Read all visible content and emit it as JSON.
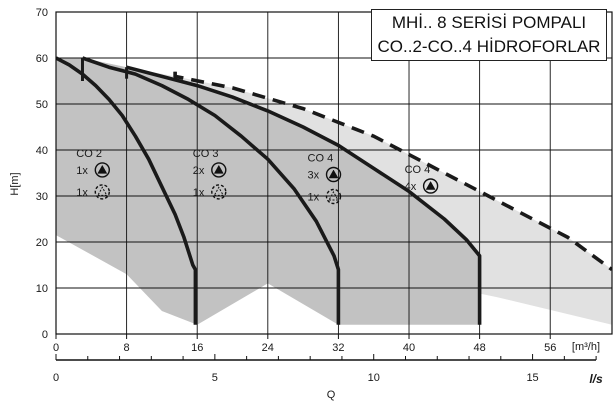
{
  "chart_data": {
    "type": "line",
    "title_lines": [
      "MHİ.. 8 SERİSİ POMPALI",
      "CO..2-CO..4 HİDROFORLAR"
    ],
    "ylabel": "H[m]",
    "xlabel": "Q",
    "x_unit_top": "m³/h",
    "x_unit_bottom": "l/s",
    "ylim": [
      0,
      70
    ],
    "xlim": [
      0,
      63
    ],
    "y_ticks": [
      0,
      10,
      20,
      30,
      40,
      50,
      60,
      70
    ],
    "x_ticks_top": [
      0,
      8,
      16,
      24,
      32,
      40,
      48,
      56
    ],
    "x_ticks_bottom": [
      0,
      5,
      10,
      15
    ],
    "grid": true,
    "series": [
      {
        "name": "CO 2",
        "style": "solid",
        "points": [
          [
            0,
            60
          ],
          [
            1.5,
            58.5
          ],
          [
            3,
            56.5
          ],
          [
            4.5,
            54
          ],
          [
            6,
            51
          ],
          [
            7.5,
            47.5
          ],
          [
            9,
            43
          ],
          [
            10.5,
            38
          ],
          [
            12,
            32
          ],
          [
            13.5,
            26
          ],
          [
            14.5,
            21
          ],
          [
            15.5,
            15
          ],
          [
            15.8,
            14
          ],
          [
            15.8,
            2
          ]
        ]
      },
      {
        "name": "CO 3",
        "style": "solid",
        "points": [
          [
            3,
            60
          ],
          [
            6,
            58
          ],
          [
            9,
            56.5
          ],
          [
            12,
            54
          ],
          [
            15,
            51
          ],
          [
            18,
            47.5
          ],
          [
            21,
            43
          ],
          [
            24,
            38
          ],
          [
            27,
            31.5
          ],
          [
            29.5,
            24.5
          ],
          [
            31.5,
            17
          ],
          [
            32,
            14
          ],
          [
            32,
            2
          ]
        ]
      },
      {
        "name": "CO 4",
        "style": "solid",
        "points": [
          [
            8,
            58
          ],
          [
            12,
            56
          ],
          [
            16,
            54
          ],
          [
            20,
            51.5
          ],
          [
            24,
            48.5
          ],
          [
            28,
            45
          ],
          [
            32,
            41
          ],
          [
            36,
            36
          ],
          [
            40,
            31
          ],
          [
            44,
            25
          ],
          [
            46.5,
            20.5
          ],
          [
            48,
            17
          ],
          [
            48,
            14
          ],
          [
            48,
            2
          ]
        ]
      },
      {
        "name": "CO 4",
        "style": "dashed",
        "points": [
          [
            13.5,
            57
          ],
          [
            13.5,
            56
          ],
          [
            20,
            53.5
          ],
          [
            28,
            49
          ],
          [
            36,
            43
          ],
          [
            44,
            35
          ],
          [
            52,
            27
          ],
          [
            58,
            21
          ],
          [
            63,
            14
          ]
        ]
      }
    ],
    "annotations": [
      {
        "label": "CO 2",
        "x": 2.3,
        "y": 38.5,
        "counts": [
          "1x",
          "1x"
        ]
      },
      {
        "label": "CO 3",
        "x": 15.5,
        "y": 38.5,
        "counts": [
          "2x",
          "1x"
        ]
      },
      {
        "label": "CO 4",
        "x": 28.5,
        "y": 37.5,
        "counts": [
          "3x",
          "1x"
        ]
      },
      {
        "label": "CO 4",
        "x": 39.5,
        "y": 35,
        "counts": [
          "4x"
        ]
      }
    ]
  }
}
